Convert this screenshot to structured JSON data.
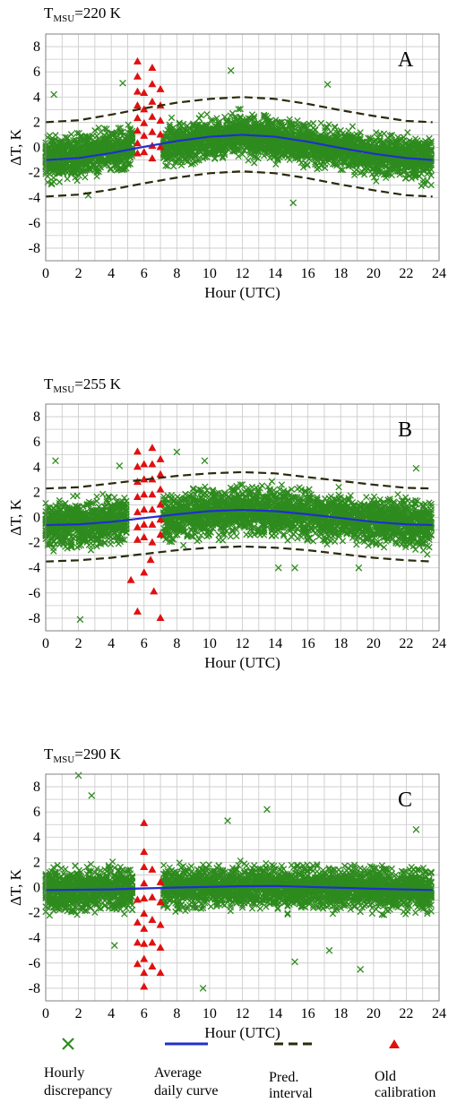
{
  "colors": {
    "hourly": "#2e8b1e",
    "average": "#1f2fcf",
    "interval": "#2a2a0c",
    "old": "#e01010",
    "grid": "#c8c8c8"
  },
  "chart_data": [
    {
      "type": "scatter",
      "panel_label": "A",
      "title_main": "T",
      "title_sub": "MSU",
      "title_rest": "=220 K",
      "xlabel": "Hour (UTC)",
      "ylabel": "ΔT, K",
      "xlim": [
        0,
        24
      ],
      "ylim": [
        -9,
        9
      ],
      "xticks": [
        0,
        2,
        4,
        6,
        8,
        10,
        12,
        14,
        16,
        18,
        20,
        22,
        24
      ],
      "yticks": [
        -8,
        -6,
        -4,
        -2,
        0,
        2,
        4,
        6,
        8
      ],
      "grid": true,
      "hourly_band": {
        "center": [
          [
            0,
            -1.0
          ],
          [
            4,
            -0.3
          ],
          [
            8,
            0.3
          ],
          [
            12,
            1.0
          ],
          [
            16,
            0.3
          ],
          [
            20,
            -0.6
          ],
          [
            23.6,
            -1.0
          ]
        ],
        "halfwidth": 2.3
      },
      "hourly_outliers": [
        [
          0.5,
          4.2
        ],
        [
          4.7,
          5.1
        ],
        [
          11.3,
          6.1
        ],
        [
          15.1,
          -4.4
        ],
        [
          17.2,
          5.0
        ],
        [
          2.6,
          -3.8
        ]
      ],
      "average_curve": [
        [
          0,
          -1.0
        ],
        [
          2,
          -0.85
        ],
        [
          4,
          -0.45
        ],
        [
          6,
          0.05
        ],
        [
          8,
          0.5
        ],
        [
          10,
          0.85
        ],
        [
          12,
          1.0
        ],
        [
          14,
          0.85
        ],
        [
          16,
          0.45
        ],
        [
          18,
          -0.05
        ],
        [
          20,
          -0.5
        ],
        [
          22,
          -0.85
        ],
        [
          23.6,
          -1.0
        ]
      ],
      "pred_upper": [
        [
          0,
          2.0
        ],
        [
          2,
          2.15
        ],
        [
          4,
          2.6
        ],
        [
          6,
          3.1
        ],
        [
          8,
          3.55
        ],
        [
          10,
          3.85
        ],
        [
          12,
          4.0
        ],
        [
          14,
          3.85
        ],
        [
          16,
          3.45
        ],
        [
          18,
          2.95
        ],
        [
          20,
          2.5
        ],
        [
          22,
          2.1
        ],
        [
          23.6,
          2.0
        ]
      ],
      "pred_lower": [
        [
          0,
          -3.9
        ],
        [
          2,
          -3.75
        ],
        [
          4,
          -3.35
        ],
        [
          6,
          -2.85
        ],
        [
          8,
          -2.4
        ],
        [
          10,
          -2.05
        ],
        [
          12,
          -1.9
        ],
        [
          14,
          -2.05
        ],
        [
          16,
          -2.45
        ],
        [
          18,
          -2.95
        ],
        [
          20,
          -3.4
        ],
        [
          22,
          -3.8
        ],
        [
          23.6,
          -3.9
        ]
      ],
      "old_calibration": [
        [
          5.6,
          6.8
        ],
        [
          5.6,
          5.6
        ],
        [
          5.6,
          4.4
        ],
        [
          5.6,
          3.3
        ],
        [
          5.6,
          2.3
        ],
        [
          5.6,
          1.3
        ],
        [
          5.6,
          0.3
        ],
        [
          5.6,
          -0.5
        ],
        [
          6.0,
          4.3
        ],
        [
          6.0,
          3.0
        ],
        [
          6.0,
          1.9
        ],
        [
          6.0,
          0.9
        ],
        [
          6.0,
          -0.4
        ],
        [
          6.5,
          6.3
        ],
        [
          6.5,
          5.0
        ],
        [
          6.5,
          3.6
        ],
        [
          6.5,
          2.4
        ],
        [
          6.5,
          1.2
        ],
        [
          6.5,
          0.1
        ],
        [
          6.5,
          -0.9
        ],
        [
          7.0,
          4.6
        ],
        [
          7.0,
          3.3
        ],
        [
          7.0,
          2.1
        ],
        [
          7.0,
          1.0
        ],
        [
          7.0,
          0.0
        ]
      ]
    },
    {
      "type": "scatter",
      "panel_label": "B",
      "title_main": "T",
      "title_sub": "MSU",
      "title_rest": "=255 K",
      "xlabel": "Hour (UTC)",
      "ylabel": "ΔT, K",
      "xlim": [
        0,
        24
      ],
      "ylim": [
        -9,
        9
      ],
      "xticks": [
        0,
        2,
        4,
        6,
        8,
        10,
        12,
        14,
        16,
        18,
        20,
        22,
        24
      ],
      "yticks": [
        -8,
        -6,
        -4,
        -2,
        0,
        2,
        4,
        6,
        8
      ],
      "grid": true,
      "hourly_band": {
        "center": [
          [
            0,
            -0.6
          ],
          [
            6,
            -0.1
          ],
          [
            12,
            0.6
          ],
          [
            18,
            0.0
          ],
          [
            23.6,
            -0.6
          ]
        ],
        "halfwidth": 2.6
      },
      "hourly_outliers": [
        [
          2.1,
          -8.1
        ],
        [
          0.6,
          4.5
        ],
        [
          4.5,
          4.1
        ],
        [
          9.7,
          4.5
        ],
        [
          14.2,
          -4.0
        ],
        [
          15.2,
          -4.0
        ],
        [
          19.1,
          -4.0
        ],
        [
          22.6,
          3.9
        ],
        [
          8.0,
          5.2
        ]
      ],
      "average_curve": [
        [
          0,
          -0.6
        ],
        [
          2,
          -0.55
        ],
        [
          4,
          -0.35
        ],
        [
          6,
          -0.05
        ],
        [
          8,
          0.25
        ],
        [
          10,
          0.5
        ],
        [
          12,
          0.6
        ],
        [
          14,
          0.5
        ],
        [
          16,
          0.25
        ],
        [
          18,
          -0.05
        ],
        [
          20,
          -0.35
        ],
        [
          22,
          -0.55
        ],
        [
          23.6,
          -0.6
        ]
      ],
      "pred_upper": [
        [
          0,
          2.3
        ],
        [
          2,
          2.4
        ],
        [
          4,
          2.7
        ],
        [
          6,
          3.0
        ],
        [
          8,
          3.3
        ],
        [
          10,
          3.5
        ],
        [
          12,
          3.6
        ],
        [
          14,
          3.5
        ],
        [
          16,
          3.2
        ],
        [
          18,
          2.9
        ],
        [
          20,
          2.6
        ],
        [
          22,
          2.35
        ],
        [
          23.6,
          2.3
        ]
      ],
      "pred_lower": [
        [
          0,
          -3.5
        ],
        [
          2,
          -3.4
        ],
        [
          4,
          -3.2
        ],
        [
          6,
          -2.9
        ],
        [
          8,
          -2.6
        ],
        [
          10,
          -2.4
        ],
        [
          12,
          -2.3
        ],
        [
          14,
          -2.4
        ],
        [
          16,
          -2.6
        ],
        [
          18,
          -2.9
        ],
        [
          20,
          -3.2
        ],
        [
          22,
          -3.4
        ],
        [
          23.6,
          -3.5
        ]
      ],
      "old_calibration": [
        [
          5.6,
          5.2
        ],
        [
          5.6,
          4.0
        ],
        [
          5.6,
          2.8
        ],
        [
          5.6,
          1.6
        ],
        [
          5.6,
          0.4
        ],
        [
          5.6,
          -0.8
        ],
        [
          5.6,
          -1.8
        ],
        [
          5.6,
          -7.5
        ],
        [
          5.2,
          -5.0
        ],
        [
          6.0,
          4.2
        ],
        [
          6.0,
          3.0
        ],
        [
          6.0,
          1.8
        ],
        [
          6.0,
          0.6
        ],
        [
          6.0,
          -0.6
        ],
        [
          6.0,
          -1.6
        ],
        [
          6.0,
          -4.4
        ],
        [
          6.5,
          5.5
        ],
        [
          6.5,
          4.2
        ],
        [
          6.5,
          3.0
        ],
        [
          6.5,
          1.8
        ],
        [
          6.5,
          0.6
        ],
        [
          6.5,
          -0.6
        ],
        [
          6.5,
          -2.0
        ],
        [
          6.4,
          -3.4
        ],
        [
          6.6,
          -5.9
        ],
        [
          7.0,
          4.6
        ],
        [
          7.0,
          3.4
        ],
        [
          7.0,
          2.2
        ],
        [
          7.0,
          1.0
        ],
        [
          7.0,
          -0.2
        ],
        [
          7.0,
          -1.4
        ],
        [
          7.0,
          -8.0
        ]
      ]
    },
    {
      "type": "scatter",
      "panel_label": "C",
      "title_main": "T",
      "title_sub": "MSU",
      "title_rest": "=290 K",
      "xlabel": "Hour (UTC)",
      "ylabel": "ΔT, K",
      "xlim": [
        0,
        24
      ],
      "ylim": [
        -9,
        9
      ],
      "xticks": [
        0,
        2,
        4,
        6,
        8,
        10,
        12,
        14,
        16,
        18,
        20,
        22,
        24
      ],
      "yticks": [
        -8,
        -6,
        -4,
        -2,
        0,
        2,
        4,
        6,
        8
      ],
      "grid": true,
      "hourly_band": {
        "center": [
          [
            0,
            -0.2
          ],
          [
            12,
            0.1
          ],
          [
            23.6,
            -0.2
          ]
        ],
        "halfwidth": 2.3
      },
      "hourly_outliers": [
        [
          2.0,
          8.9
        ],
        [
          2.8,
          7.3
        ],
        [
          13.5,
          6.2
        ],
        [
          11.1,
          5.3
        ],
        [
          19.2,
          -6.5
        ],
        [
          9.6,
          -8.0
        ],
        [
          15.2,
          -5.9
        ],
        [
          22.6,
          4.6
        ],
        [
          4.2,
          -4.6
        ],
        [
          17.3,
          -5.0
        ]
      ],
      "average_curve": [
        [
          0,
          -0.2
        ],
        [
          4,
          -0.15
        ],
        [
          8,
          0.0
        ],
        [
          12,
          0.1
        ],
        [
          14,
          0.12
        ],
        [
          16,
          0.05
        ],
        [
          20,
          -0.1
        ],
        [
          23.6,
          -0.2
        ]
      ],
      "old_calibration": [
        [
          6.0,
          5.1
        ],
        [
          6.0,
          2.8
        ],
        [
          6.0,
          1.6
        ],
        [
          6.0,
          0.3
        ],
        [
          6.0,
          -0.9
        ],
        [
          6.0,
          -2.1
        ],
        [
          6.0,
          -3.3
        ],
        [
          6.0,
          -4.5
        ],
        [
          6.0,
          -5.7
        ],
        [
          6.0,
          -6.8
        ],
        [
          6.0,
          -7.9
        ],
        [
          5.6,
          -1.0
        ],
        [
          5.6,
          -2.8
        ],
        [
          5.6,
          -4.4
        ],
        [
          5.6,
          -6.1
        ],
        [
          6.5,
          -0.8
        ],
        [
          6.5,
          -2.6
        ],
        [
          6.5,
          -4.4
        ],
        [
          6.5,
          -6.3
        ],
        [
          6.5,
          1.4
        ],
        [
          7.0,
          -1.2
        ],
        [
          7.0,
          -3.0
        ],
        [
          7.0,
          -4.8
        ],
        [
          7.0,
          -6.8
        ],
        [
          7.0,
          0.4
        ]
      ]
    }
  ],
  "legend": {
    "items": [
      {
        "key": "hourly",
        "line1": "Hourly",
        "line2": "discrepancy"
      },
      {
        "key": "average",
        "line1": "Average",
        "line2": "daily curve"
      },
      {
        "key": "interval",
        "line1": "Pred.",
        "line2": "interval"
      },
      {
        "key": "old",
        "line1": "Old",
        "line2": "calibration"
      }
    ]
  }
}
